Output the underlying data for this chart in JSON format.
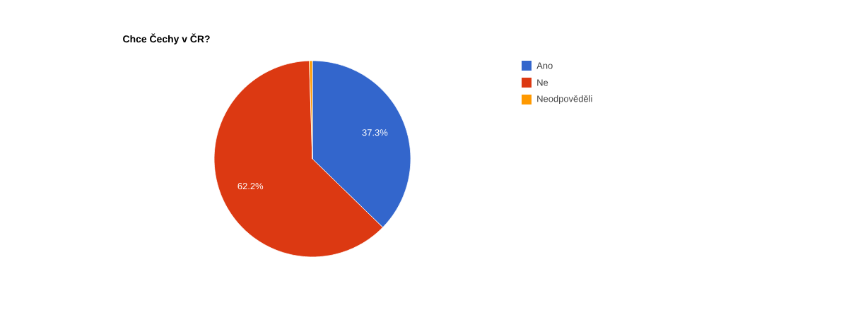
{
  "chart_data": {
    "type": "pie",
    "title": "Chce Čechy v ČR?",
    "categories": [
      "Ano",
      "Ne",
      "Neodpověděli"
    ],
    "values": [
      37.3,
      62.2,
      0.5
    ],
    "colors": [
      "#3366cc",
      "#dc3912",
      "#ff9900"
    ],
    "value_labels": [
      "37.3%",
      "62.2%",
      null
    ],
    "legend": "right"
  }
}
